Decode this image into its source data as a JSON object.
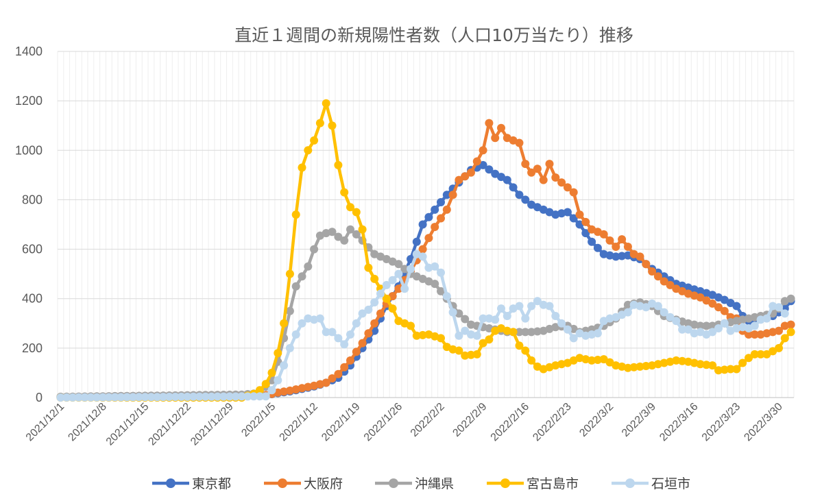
{
  "chart_data": {
    "type": "line",
    "title": "直近１週間の新規陽性者数（人口10万当たり）推移",
    "xlabel": "",
    "ylabel": "",
    "ylim": [
      0,
      1400
    ],
    "yticks": [
      0,
      200,
      400,
      600,
      800,
      1000,
      1200,
      1400
    ],
    "x_start": "2021/12/1",
    "x_count": 122,
    "x_ticks": [
      {
        "index": 0,
        "label": "2021/12/1"
      },
      {
        "index": 7,
        "label": "2021/12/8"
      },
      {
        "index": 14,
        "label": "2021/12/15"
      },
      {
        "index": 21,
        "label": "2021/12/22"
      },
      {
        "index": 28,
        "label": "2021/12/29"
      },
      {
        "index": 35,
        "label": "2022/1/5"
      },
      {
        "index": 42,
        "label": "2022/1/12"
      },
      {
        "index": 49,
        "label": "2022/1/19"
      },
      {
        "index": 56,
        "label": "2022/1/26"
      },
      {
        "index": 63,
        "label": "2022/2/2"
      },
      {
        "index": 70,
        "label": "2022/2/9"
      },
      {
        "index": 77,
        "label": "2022/2/16"
      },
      {
        "index": 84,
        "label": "2022/2/23"
      },
      {
        "index": 91,
        "label": "2022/3/2"
      },
      {
        "index": 98,
        "label": "2022/3/9"
      },
      {
        "index": 105,
        "label": "2022/3/16"
      },
      {
        "index": 112,
        "label": "2022/3/23"
      },
      {
        "index": 119,
        "label": "2022/3/30"
      }
    ],
    "grid": true,
    "legend_position": "bottom",
    "series": [
      {
        "name": "東京都",
        "color": "#4472C4"
      },
      {
        "name": "大阪府",
        "color": "#ED7D31"
      },
      {
        "name": "沖縄県",
        "color": "#A5A5A5"
      },
      {
        "name": "宮古島市",
        "color": "#FFC000"
      },
      {
        "name": "石垣市",
        "color": "#BDD7EE"
      }
    ],
    "keypoints": {
      "東京都": [
        [
          0,
          2
        ],
        [
          30,
          6
        ],
        [
          34,
          10
        ],
        [
          36,
          18
        ],
        [
          38,
          25
        ],
        [
          40,
          35
        ],
        [
          42,
          45
        ],
        [
          44,
          60
        ],
        [
          46,
          80
        ],
        [
          48,
          130
        ],
        [
          50,
          200
        ],
        [
          52,
          270
        ],
        [
          54,
          370
        ],
        [
          56,
          450
        ],
        [
          58,
          560
        ],
        [
          60,
          700
        ],
        [
          62,
          760
        ],
        [
          64,
          820
        ],
        [
          66,
          870
        ],
        [
          68,
          920
        ],
        [
          70,
          940
        ],
        [
          72,
          905
        ],
        [
          74,
          880
        ],
        [
          76,
          820
        ],
        [
          78,
          780
        ],
        [
          80,
          760
        ],
        [
          82,
          740
        ],
        [
          84,
          750
        ],
        [
          86,
          700
        ],
        [
          88,
          630
        ],
        [
          90,
          580
        ],
        [
          92,
          570
        ],
        [
          94,
          575
        ],
        [
          96,
          560
        ],
        [
          98,
          520
        ],
        [
          100,
          490
        ],
        [
          102,
          460
        ],
        [
          104,
          445
        ],
        [
          106,
          430
        ],
        [
          108,
          415
        ],
        [
          110,
          395
        ],
        [
          112,
          370
        ],
        [
          113,
          330
        ],
        [
          114,
          310
        ],
        [
          116,
          320
        ],
        [
          118,
          330
        ],
        [
          120,
          360
        ],
        [
          121,
          390
        ]
      ],
      "大阪府": [
        [
          0,
          2
        ],
        [
          30,
          5
        ],
        [
          34,
          10
        ],
        [
          36,
          20
        ],
        [
          38,
          28
        ],
        [
          40,
          38
        ],
        [
          42,
          48
        ],
        [
          44,
          60
        ],
        [
          46,
          95
        ],
        [
          48,
          150
        ],
        [
          50,
          220
        ],
        [
          52,
          300
        ],
        [
          54,
          380
        ],
        [
          56,
          440
        ],
        [
          58,
          510
        ],
        [
          60,
          600
        ],
        [
          62,
          690
        ],
        [
          64,
          760
        ],
        [
          66,
          880
        ],
        [
          68,
          910
        ],
        [
          70,
          1000
        ],
        [
          71,
          1110
        ],
        [
          72,
          1050
        ],
        [
          73,
          1090
        ],
        [
          74,
          1050
        ],
        [
          76,
          1030
        ],
        [
          77,
          945
        ],
        [
          78,
          910
        ],
        [
          79,
          925
        ],
        [
          80,
          880
        ],
        [
          81,
          945
        ],
        [
          82,
          890
        ],
        [
          84,
          850
        ],
        [
          85,
          830
        ],
        [
          86,
          740
        ],
        [
          88,
          680
        ],
        [
          90,
          660
        ],
        [
          92,
          610
        ],
        [
          93,
          640
        ],
        [
          94,
          610
        ],
        [
          95,
          580
        ],
        [
          96,
          570
        ],
        [
          98,
          510
        ],
        [
          100,
          470
        ],
        [
          102,
          440
        ],
        [
          104,
          420
        ],
        [
          106,
          405
        ],
        [
          108,
          380
        ],
        [
          110,
          350
        ],
        [
          111,
          325
        ],
        [
          112,
          320
        ],
        [
          113,
          270
        ],
        [
          114,
          255
        ],
        [
          116,
          255
        ],
        [
          118,
          265
        ],
        [
          119,
          270
        ],
        [
          120,
          290
        ],
        [
          121,
          295
        ]
      ],
      "沖縄県": [
        [
          0,
          3
        ],
        [
          30,
          12
        ],
        [
          33,
          18
        ],
        [
          35,
          70
        ],
        [
          36,
          145
        ],
        [
          37,
          240
        ],
        [
          38,
          350
        ],
        [
          39,
          450
        ],
        [
          40,
          490
        ],
        [
          41,
          530
        ],
        [
          42,
          600
        ],
        [
          43,
          655
        ],
        [
          44,
          665
        ],
        [
          45,
          670
        ],
        [
          46,
          650
        ],
        [
          47,
          635
        ],
        [
          48,
          680
        ],
        [
          49,
          660
        ],
        [
          50,
          635
        ],
        [
          52,
          580
        ],
        [
          54,
          560
        ],
        [
          56,
          540
        ],
        [
          58,
          500
        ],
        [
          60,
          480
        ],
        [
          62,
          460
        ],
        [
          64,
          400
        ],
        [
          66,
          340
        ],
        [
          68,
          295
        ],
        [
          70,
          285
        ],
        [
          72,
          275
        ],
        [
          74,
          265
        ],
        [
          76,
          265
        ],
        [
          78,
          265
        ],
        [
          80,
          270
        ],
        [
          82,
          285
        ],
        [
          84,
          290
        ],
        [
          86,
          265
        ],
        [
          88,
          275
        ],
        [
          90,
          290
        ],
        [
          92,
          320
        ],
        [
          94,
          375
        ],
        [
          96,
          385
        ],
        [
          98,
          370
        ],
        [
          100,
          330
        ],
        [
          102,
          315
        ],
        [
          104,
          300
        ],
        [
          106,
          290
        ],
        [
          108,
          290
        ],
        [
          110,
          300
        ],
        [
          112,
          310
        ],
        [
          114,
          320
        ],
        [
          116,
          330
        ],
        [
          118,
          340
        ],
        [
          119,
          360
        ],
        [
          120,
          390
        ],
        [
          121,
          400
        ]
      ],
      "宮古島市": [
        [
          0,
          0
        ],
        [
          30,
          0
        ],
        [
          32,
          15
        ],
        [
          33,
          30
        ],
        [
          34,
          55
        ],
        [
          35,
          100
        ],
        [
          36,
          180
        ],
        [
          37,
          300
        ],
        [
          38,
          500
        ],
        [
          39,
          740
        ],
        [
          40,
          930
        ],
        [
          41,
          1000
        ],
        [
          42,
          1040
        ],
        [
          43,
          1110
        ],
        [
          44,
          1190
        ],
        [
          45,
          1100
        ],
        [
          46,
          940
        ],
        [
          47,
          830
        ],
        [
          48,
          770
        ],
        [
          49,
          750
        ],
        [
          50,
          680
        ],
        [
          51,
          525
        ],
        [
          52,
          480
        ],
        [
          53,
          440
        ],
        [
          55,
          360
        ],
        [
          56,
          310
        ],
        [
          58,
          290
        ],
        [
          59,
          250
        ],
        [
          61,
          255
        ],
        [
          63,
          240
        ],
        [
          64,
          205
        ],
        [
          65,
          195
        ],
        [
          66,
          190
        ],
        [
          67,
          170
        ],
        [
          69,
          175
        ],
        [
          70,
          220
        ],
        [
          71,
          235
        ],
        [
          72,
          270
        ],
        [
          73,
          280
        ],
        [
          74,
          270
        ],
        [
          75,
          265
        ],
        [
          76,
          210
        ],
        [
          77,
          190
        ],
        [
          78,
          150
        ],
        [
          79,
          125
        ],
        [
          80,
          115
        ],
        [
          82,
          130
        ],
        [
          84,
          140
        ],
        [
          86,
          160
        ],
        [
          88,
          150
        ],
        [
          90,
          155
        ],
        [
          92,
          130
        ],
        [
          94,
          120
        ],
        [
          96,
          125
        ],
        [
          98,
          130
        ],
        [
          100,
          140
        ],
        [
          102,
          150
        ],
        [
          104,
          145
        ],
        [
          106,
          135
        ],
        [
          108,
          130
        ],
        [
          109,
          110
        ],
        [
          111,
          115
        ],
        [
          112,
          115
        ],
        [
          113,
          140
        ],
        [
          114,
          160
        ],
        [
          115,
          175
        ],
        [
          117,
          175
        ],
        [
          119,
          200
        ],
        [
          120,
          240
        ],
        [
          121,
          265
        ]
      ],
      "石垣市": [
        [
          0,
          0
        ],
        [
          34,
          5
        ],
        [
          35,
          30
        ],
        [
          36,
          70
        ],
        [
          37,
          130
        ],
        [
          38,
          200
        ],
        [
          39,
          255
        ],
        [
          40,
          300
        ],
        [
          41,
          320
        ],
        [
          42,
          315
        ],
        [
          43,
          320
        ],
        [
          44,
          265
        ],
        [
          45,
          265
        ],
        [
          46,
          240
        ],
        [
          47,
          215
        ],
        [
          48,
          255
        ],
        [
          49,
          300
        ],
        [
          50,
          340
        ],
        [
          51,
          355
        ],
        [
          52,
          385
        ],
        [
          53,
          420
        ],
        [
          54,
          455
        ],
        [
          55,
          475
        ],
        [
          56,
          500
        ],
        [
          57,
          440
        ],
        [
          58,
          520
        ],
        [
          59,
          580
        ],
        [
          60,
          570
        ],
        [
          61,
          525
        ],
        [
          62,
          530
        ],
        [
          63,
          505
        ],
        [
          64,
          410
        ],
        [
          65,
          345
        ],
        [
          66,
          250
        ],
        [
          67,
          270
        ],
        [
          68,
          255
        ],
        [
          69,
          250
        ],
        [
          70,
          320
        ],
        [
          71,
          320
        ],
        [
          72,
          315
        ],
        [
          73,
          360
        ],
        [
          74,
          330
        ],
        [
          75,
          360
        ],
        [
          76,
          370
        ],
        [
          77,
          320
        ],
        [
          78,
          370
        ],
        [
          79,
          390
        ],
        [
          80,
          375
        ],
        [
          81,
          370
        ],
        [
          82,
          330
        ],
        [
          83,
          300
        ],
        [
          84,
          275
        ],
        [
          85,
          240
        ],
        [
          86,
          260
        ],
        [
          87,
          250
        ],
        [
          88,
          255
        ],
        [
          89,
          260
        ],
        [
          90,
          310
        ],
        [
          91,
          320
        ],
        [
          92,
          325
        ],
        [
          94,
          345
        ],
        [
          95,
          375
        ],
        [
          96,
          370
        ],
        [
          97,
          365
        ],
        [
          98,
          380
        ],
        [
          99,
          370
        ],
        [
          100,
          345
        ],
        [
          101,
          325
        ],
        [
          102,
          310
        ],
        [
          103,
          275
        ],
        [
          104,
          275
        ],
        [
          105,
          260
        ],
        [
          106,
          265
        ],
        [
          107,
          255
        ],
        [
          108,
          265
        ],
        [
          109,
          280
        ],
        [
          110,
          300
        ],
        [
          111,
          270
        ],
        [
          112,
          280
        ],
        [
          113,
          285
        ],
        [
          114,
          280
        ],
        [
          115,
          290
        ],
        [
          116,
          315
        ],
        [
          117,
          320
        ],
        [
          118,
          370
        ],
        [
          119,
          365
        ],
        [
          120,
          340
        ]
      ]
    }
  }
}
